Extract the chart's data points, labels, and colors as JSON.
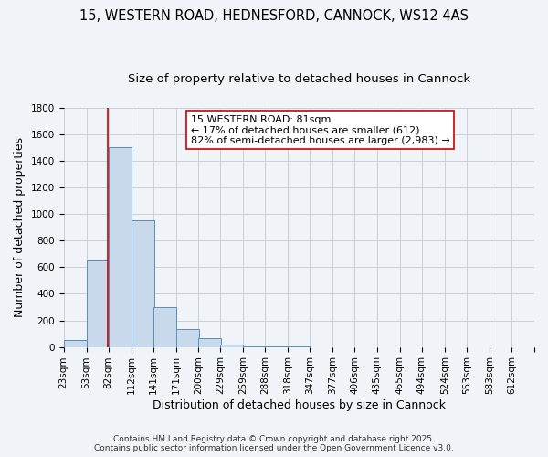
{
  "title": "15, WESTERN ROAD, HEDNESFORD, CANNOCK, WS12 4AS",
  "subtitle": "Size of property relative to detached houses in Cannock",
  "xlabel": "Distribution of detached houses by size in Cannock",
  "ylabel": "Number of detached properties",
  "bin_labels": [
    "23sqm",
    "53sqm",
    "82sqm",
    "112sqm",
    "141sqm",
    "171sqm",
    "200sqm",
    "229sqm",
    "259sqm",
    "288sqm",
    "318sqm",
    "347sqm",
    "377sqm",
    "406sqm",
    "435sqm",
    "465sqm",
    "494sqm",
    "524sqm",
    "553sqm",
    "583sqm",
    "612sqm"
  ],
  "bin_edges": [
    23,
    53,
    82,
    112,
    141,
    171,
    200,
    229,
    259,
    288,
    318,
    347,
    377,
    406,
    435,
    465,
    494,
    524,
    553,
    583,
    612
  ],
  "bar_values": [
    50,
    650,
    1500,
    950,
    300,
    135,
    65,
    20,
    5,
    2,
    1,
    0,
    0,
    0,
    0,
    0,
    0,
    0,
    0,
    0
  ],
  "bar_color": "#c9d9ec",
  "bar_edge_color": "#5b8db8",
  "grid_color": "#c8d0d8",
  "background_color": "#f0f4f8",
  "annotation_line1": "15 WESTERN ROAD: 81sqm",
  "annotation_line2": "← 17% of detached houses are smaller (612)",
  "annotation_line3": "82% of semi-detached houses are larger (2,983) →",
  "annotation_box_color": "#ffffff",
  "annotation_box_edge_color": "#cc0000",
  "property_line_x": 81,
  "property_line_color": "#cc0000",
  "ylim": [
    0,
    1800
  ],
  "yticks": [
    0,
    200,
    400,
    600,
    800,
    1000,
    1200,
    1400,
    1600,
    1800
  ],
  "footer_line1": "Contains HM Land Registry data © Crown copyright and database right 2025.",
  "footer_line2": "Contains public sector information licensed under the Open Government Licence v3.0.",
  "title_fontsize": 10.5,
  "subtitle_fontsize": 9.5,
  "axis_label_fontsize": 9,
  "tick_fontsize": 7.5,
  "annotation_fontsize": 8,
  "footer_fontsize": 6.5
}
